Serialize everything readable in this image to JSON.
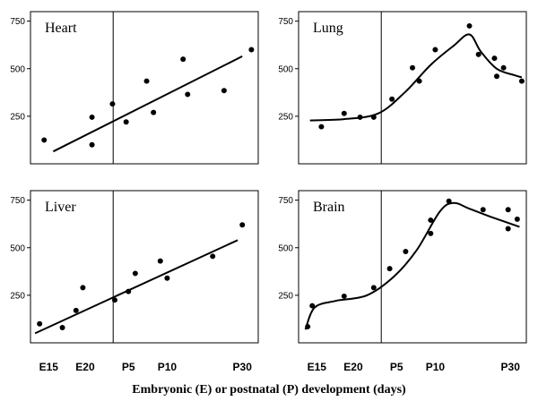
{
  "x_tick_labels": [
    "E15",
    "E20",
    "P5",
    "P10",
    "P30"
  ],
  "x_axis_label": "Embryonic (E) or postnatal (P) development (days)",
  "chart_data": [
    {
      "type": "scatter",
      "title": "Heart",
      "ylim": [
        0,
        800
      ],
      "yticks": [
        250,
        500,
        750
      ],
      "points": [
        [
          0.06,
          125
        ],
        [
          0.27,
          100
        ],
        [
          0.27,
          245
        ],
        [
          0.36,
          315
        ],
        [
          0.42,
          220
        ],
        [
          0.51,
          435
        ],
        [
          0.54,
          270
        ],
        [
          0.67,
          550
        ],
        [
          0.69,
          365
        ],
        [
          0.85,
          385
        ],
        [
          0.97,
          600
        ]
      ],
      "fit": [
        [
          0.1,
          65
        ],
        [
          0.93,
          565
        ]
      ],
      "fit_type": "linear"
    },
    {
      "type": "scatter",
      "title": "Lung",
      "ylim": [
        0,
        800
      ],
      "yticks": [
        250,
        500,
        750
      ],
      "points": [
        [
          0.1,
          195
        ],
        [
          0.2,
          265
        ],
        [
          0.27,
          245
        ],
        [
          0.33,
          245
        ],
        [
          0.41,
          340
        ],
        [
          0.5,
          505
        ],
        [
          0.53,
          435
        ],
        [
          0.6,
          600
        ],
        [
          0.75,
          725
        ],
        [
          0.79,
          575
        ],
        [
          0.86,
          555
        ],
        [
          0.87,
          460
        ],
        [
          0.9,
          505
        ],
        [
          0.98,
          435
        ]
      ],
      "fit": [
        [
          0.05,
          228
        ],
        [
          0.2,
          235
        ],
        [
          0.35,
          265
        ],
        [
          0.47,
          380
        ],
        [
          0.58,
          520
        ],
        [
          0.68,
          620
        ],
        [
          0.75,
          680
        ],
        [
          0.8,
          590
        ],
        [
          0.87,
          500
        ],
        [
          0.95,
          465
        ],
        [
          0.98,
          455
        ]
      ],
      "fit_type": "smooth"
    },
    {
      "type": "scatter",
      "title": "Liver",
      "ylim": [
        0,
        800
      ],
      "yticks": [
        250,
        500,
        750
      ],
      "points": [
        [
          0.04,
          100
        ],
        [
          0.14,
          80
        ],
        [
          0.2,
          170
        ],
        [
          0.23,
          290
        ],
        [
          0.37,
          225
        ],
        [
          0.43,
          270
        ],
        [
          0.46,
          365
        ],
        [
          0.57,
          430
        ],
        [
          0.6,
          340
        ],
        [
          0.8,
          455
        ],
        [
          0.93,
          620
        ]
      ],
      "fit": [
        [
          0.02,
          50
        ],
        [
          0.91,
          540
        ]
      ],
      "fit_type": "linear"
    },
    {
      "type": "scatter",
      "title": "Brain",
      "ylim": [
        0,
        800
      ],
      "yticks": [
        250,
        500,
        750
      ],
      "points": [
        [
          0.04,
          85
        ],
        [
          0.06,
          195
        ],
        [
          0.2,
          245
        ],
        [
          0.33,
          290
        ],
        [
          0.4,
          390
        ],
        [
          0.47,
          480
        ],
        [
          0.58,
          575
        ],
        [
          0.58,
          645
        ],
        [
          0.66,
          745
        ],
        [
          0.81,
          700
        ],
        [
          0.92,
          600
        ],
        [
          0.92,
          700
        ],
        [
          0.96,
          650
        ]
      ],
      "fit": [
        [
          0.03,
          70
        ],
        [
          0.07,
          185
        ],
        [
          0.16,
          220
        ],
        [
          0.3,
          250
        ],
        [
          0.42,
          350
        ],
        [
          0.52,
          490
        ],
        [
          0.62,
          690
        ],
        [
          0.68,
          735
        ],
        [
          0.75,
          705
        ],
        [
          0.85,
          660
        ],
        [
          0.97,
          610
        ]
      ],
      "fit_type": "smooth"
    }
  ]
}
